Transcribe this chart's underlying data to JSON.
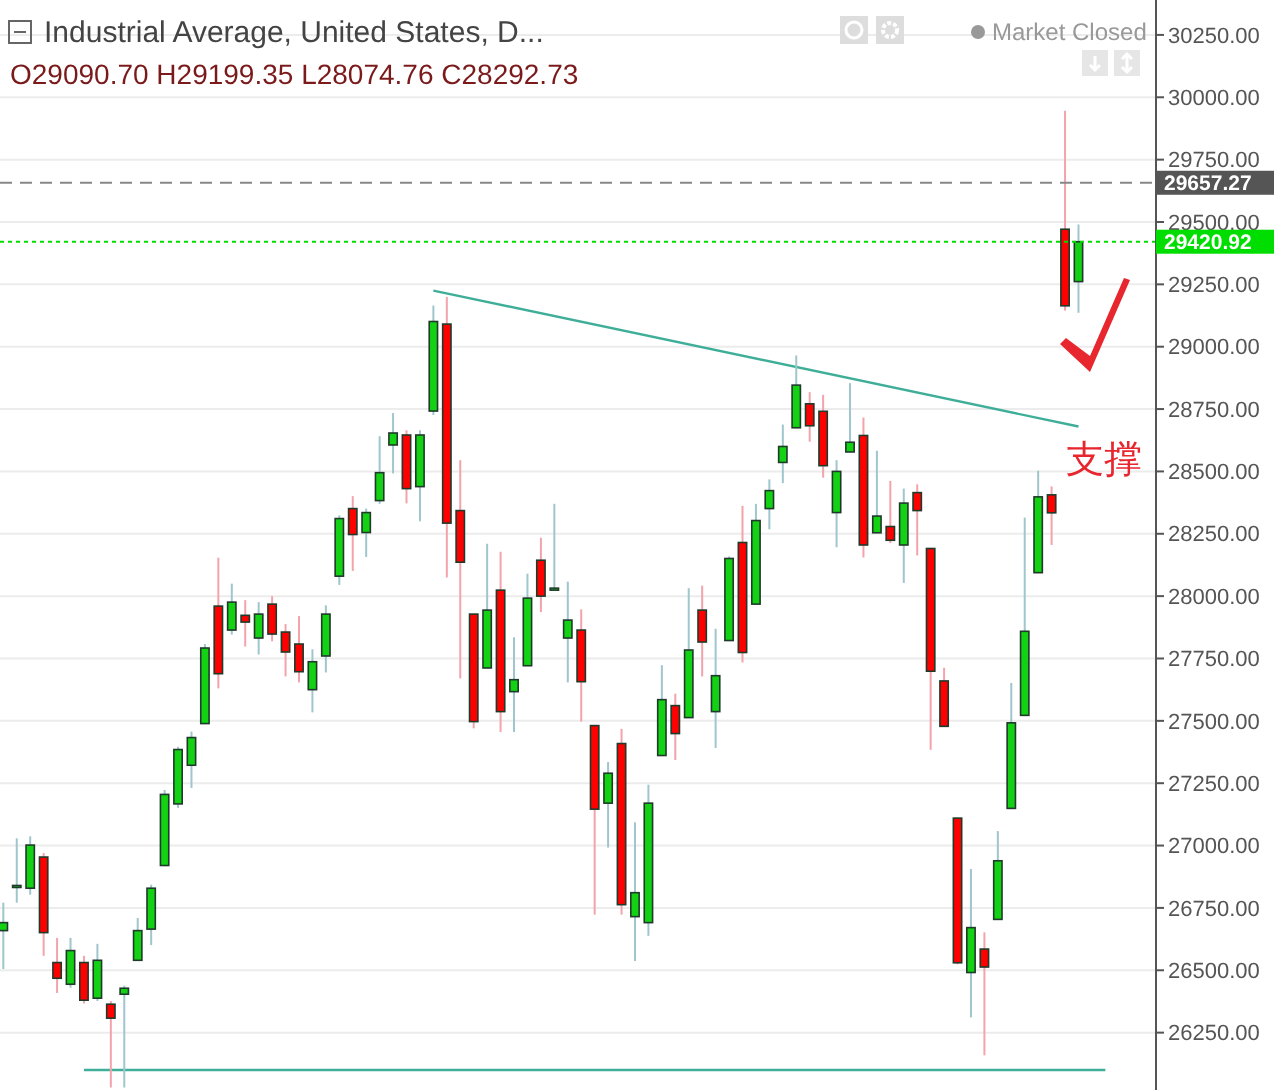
{
  "chart_data": {
    "type": "candlestick",
    "title": "Industrial Average, United States, D...",
    "subtitle": "O29090.70 H29199.35 L28074.76 C28292.73",
    "categories": [
      null,
      null,
      null,
      null,
      null,
      null,
      null,
      null,
      null,
      null,
      null,
      null,
      null,
      null,
      null,
      null,
      null,
      null,
      null,
      null,
      null,
      null,
      null,
      null,
      null,
      null,
      null,
      null,
      null,
      null,
      null,
      null,
      null,
      null,
      null,
      null,
      null,
      null,
      null,
      null,
      null,
      null,
      null,
      null,
      null,
      null,
      null,
      null,
      null,
      null,
      null,
      null,
      null,
      null,
      null,
      null,
      null,
      null,
      null,
      null,
      null,
      null,
      null,
      null,
      null,
      null,
      null,
      null,
      null,
      null,
      null,
      null,
      null,
      null,
      null,
      null,
      null,
      null,
      null,
      null,
      null,
      null,
      null,
      null,
      null,
      null
    ],
    "ohlc": [
      [
        26659,
        26771,
        26505,
        26691
      ],
      [
        26840,
        27029,
        26771,
        26840
      ],
      [
        26829,
        27037,
        26803,
        27002
      ],
      [
        26954,
        26970,
        26558,
        26651
      ],
      [
        26531,
        26630,
        26409,
        26468
      ],
      [
        26444,
        26630,
        26430,
        26579
      ],
      [
        26531,
        26558,
        26367,
        26380
      ],
      [
        26388,
        26606,
        26377,
        26540
      ],
      [
        26364,
        26377,
        26030,
        26308
      ],
      [
        26404,
        26438,
        26030,
        26428
      ],
      [
        26540,
        26710,
        26540,
        26659
      ],
      [
        26665,
        26843,
        26601,
        26829
      ],
      [
        26920,
        27223,
        26920,
        27205
      ],
      [
        27167,
        27396,
        27151,
        27385
      ],
      [
        27322,
        27457,
        27231,
        27433
      ],
      [
        27489,
        27808,
        27489,
        27792
      ],
      [
        27960,
        28154,
        27630,
        27689
      ],
      [
        27864,
        28050,
        27846,
        27976
      ],
      [
        27923,
        27984,
        27798,
        27896
      ],
      [
        27832,
        27976,
        27766,
        27928
      ],
      [
        27968,
        28000,
        27819,
        27848
      ],
      [
        27856,
        27888,
        27678,
        27776
      ],
      [
        27808,
        27920,
        27654,
        27697
      ],
      [
        27625,
        27787,
        27534,
        27737
      ],
      [
        27760,
        27963,
        27694,
        27928
      ],
      [
        28080,
        28324,
        28045,
        28311
      ],
      [
        28351,
        28401,
        28101,
        28247
      ],
      [
        28255,
        28351,
        28157,
        28335
      ],
      [
        28383,
        28641,
        28370,
        28495
      ],
      [
        28606,
        28734,
        28492,
        28654
      ],
      [
        28646,
        28665,
        28372,
        28431
      ],
      [
        28439,
        28665,
        28300,
        28646
      ],
      [
        28742,
        29165,
        28726,
        29101
      ],
      [
        29090.7,
        29199.35,
        28074.76,
        28292.73
      ],
      [
        28343,
        28545,
        27670,
        28136
      ],
      [
        27928,
        27928,
        27470,
        27497
      ],
      [
        27712,
        28210,
        27712,
        27944
      ],
      [
        28024,
        28178,
        27455,
        27537
      ],
      [
        27617,
        27835,
        27455,
        27665
      ],
      [
        27721,
        28090,
        27721,
        27992
      ],
      [
        28144,
        28234,
        27936,
        28000
      ],
      [
        28032,
        28370,
        28032,
        28032
      ],
      [
        27832,
        28058,
        27654,
        27904
      ],
      [
        27864,
        27947,
        27497,
        27657
      ],
      [
        27481,
        27481,
        26723,
        27146
      ],
      [
        27170,
        27335,
        26992,
        27290
      ],
      [
        27409,
        27468,
        26723,
        26763
      ],
      [
        26715,
        27093,
        26537,
        26811
      ],
      [
        26691,
        27244,
        26638,
        27170
      ],
      [
        27361,
        27723,
        27361,
        27585
      ],
      [
        27561,
        27609,
        27343,
        27449
      ],
      [
        27513,
        28032,
        27513,
        27784
      ],
      [
        27944,
        28042,
        27678,
        27816
      ],
      [
        27537,
        27869,
        27391,
        27681
      ],
      [
        27822,
        28159,
        27822,
        28151
      ],
      [
        28215,
        28362,
        27734,
        27774
      ],
      [
        27968,
        28370,
        27968,
        28303
      ],
      [
        28351,
        28468,
        28268,
        28423
      ],
      [
        28536,
        28688,
        28453,
        28600
      ],
      [
        28675,
        28965,
        28675,
        28846
      ],
      [
        28771,
        28818,
        28619,
        28683
      ],
      [
        28741,
        28807,
        28475,
        28523
      ],
      [
        28335,
        28545,
        28196,
        28500
      ],
      [
        28578,
        28854,
        28578,
        28617
      ],
      [
        28644,
        28716,
        28155,
        28205
      ],
      [
        28254,
        28583,
        28254,
        28321
      ],
      [
        28279,
        28462,
        28213,
        28224
      ],
      [
        28205,
        28431,
        28053,
        28373
      ],
      [
        28415,
        28448,
        28163,
        28343
      ],
      [
        28191,
        28191,
        27384,
        27699
      ],
      [
        27660,
        27713,
        27478,
        27478
      ],
      [
        27110,
        27110,
        26524,
        26530
      ],
      [
        26491,
        26906,
        26311,
        26671
      ],
      [
        26585,
        26652,
        26159,
        26513
      ],
      [
        26704,
        27058,
        26704,
        26939
      ],
      [
        27149,
        27652,
        27149,
        27492
      ],
      [
        27522,
        28315,
        27522,
        27859
      ],
      [
        28094,
        28503,
        28094,
        28398
      ],
      [
        28406,
        28440,
        28205,
        28334
      ],
      [
        29471,
        29946,
        29145,
        29164
      ],
      [
        29261,
        29490,
        29136,
        29420.92
      ],
      null,
      null,
      null,
      null,
      null
    ],
    "series": [
      {
        "type": "line",
        "color": "#3fae98",
        "values": [
          null,
          null,
          null,
          null,
          null,
          null,
          null,
          null,
          null,
          null,
          null,
          null,
          null,
          null,
          null,
          null,
          null,
          null,
          null,
          null,
          null,
          null,
          null,
          null,
          null,
          null,
          null,
          null,
          null,
          null,
          null,
          null,
          29225,
          null,
          null,
          null,
          null,
          null,
          null,
          null,
          null,
          null,
          null,
          null,
          null,
          null,
          null,
          null,
          null,
          null,
          null,
          null,
          null,
          null,
          null,
          null,
          null,
          null,
          null,
          null,
          null,
          null,
          null,
          null,
          null,
          null,
          null,
          null,
          null,
          null,
          null,
          null,
          null,
          null,
          null,
          null,
          null,
          null,
          null,
          null,
          28680,
          null,
          null,
          null,
          null,
          null
        ]
      },
      {
        "type": "line",
        "color": "#3fae98",
        "values": [
          null,
          null,
          null,
          null,
          null,
          null,
          26100,
          null,
          null,
          null,
          null,
          null,
          null,
          null,
          null,
          null,
          null,
          null,
          null,
          null,
          null,
          null,
          null,
          null,
          null,
          null,
          null,
          null,
          null,
          null,
          null,
          null,
          null,
          null,
          null,
          null,
          null,
          null,
          null,
          null,
          null,
          null,
          null,
          null,
          null,
          null,
          null,
          null,
          null,
          null,
          null,
          null,
          null,
          null,
          null,
          null,
          null,
          null,
          null,
          null,
          null,
          null,
          null,
          null,
          null,
          null,
          null,
          null,
          null,
          null,
          null,
          null,
          null,
          null,
          null,
          null,
          null,
          null,
          null,
          null,
          null,
          null,
          26100,
          null,
          null,
          null
        ]
      }
    ],
    "ylim": [
      26020,
      30390
    ],
    "yticks": [
      {
        "value": 26250,
        "label": "26250.00"
      },
      {
        "value": 26500,
        "label": "26500.00"
      },
      {
        "value": 26750,
        "label": "26750.00"
      },
      {
        "value": 27000,
        "label": "27000.00"
      },
      {
        "value": 27250,
        "label": "27250.00"
      },
      {
        "value": 27500,
        "label": "27500.00"
      },
      {
        "value": 27750,
        "label": "27750.00"
      },
      {
        "value": 28000,
        "label": "28000.00"
      },
      {
        "value": 28250,
        "label": "28250.00"
      },
      {
        "value": 28500,
        "label": "28500.00"
      },
      {
        "value": 28750,
        "label": "28750.00"
      },
      {
        "value": 29000,
        "label": "29000.00"
      },
      {
        "value": 29250,
        "label": "29250.00"
      },
      {
        "value": 29500,
        "label": "29500.00"
      },
      {
        "value": 29750,
        "label": "29750.00"
      },
      {
        "value": 30000,
        "label": "30000.00"
      },
      {
        "value": 30250,
        "label": "30250.00"
      }
    ],
    "ref_lines": [
      {
        "axis": "y",
        "value": 29657.27,
        "label": "29657.27",
        "color": "#888888",
        "line_style": "dashed"
      },
      {
        "axis": "y",
        "value": 29420.92,
        "label": "29420.92",
        "color": "#00dd00",
        "line_style": "dotted"
      }
    ],
    "annotations": [
      "Market Closed",
      "支撑"
    ],
    "grid": "y",
    "tick_labels": "y"
  }
}
